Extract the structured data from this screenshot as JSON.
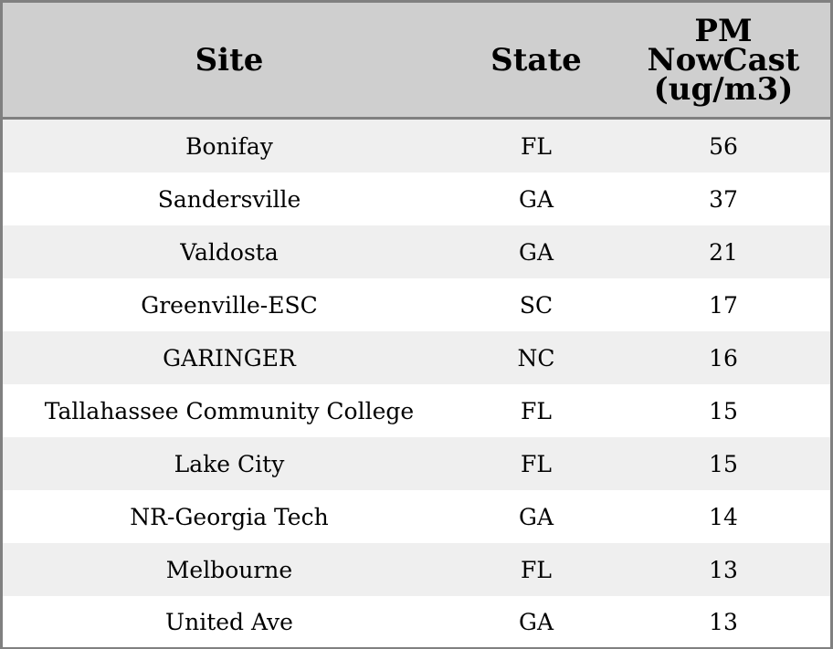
{
  "chart_data": {
    "type": "table",
    "columns": [
      "Site",
      "State",
      "PM NowCast (ug/m3)"
    ],
    "header_lines": {
      "site": "Site",
      "state": "State",
      "pm": [
        "PM",
        "NowCast",
        "(ug/m3)"
      ]
    },
    "rows": [
      [
        "Bonifay",
        "FL",
        "56"
      ],
      [
        "Sandersville",
        "GA",
        "37"
      ],
      [
        "Valdosta",
        "GA",
        "21"
      ],
      [
        "Greenville-ESC",
        "SC",
        "17"
      ],
      [
        "GARINGER",
        "NC",
        "16"
      ],
      [
        "Tallahassee Community College",
        "FL",
        "15"
      ],
      [
        "Lake City",
        "FL",
        "15"
      ],
      [
        "NR-Georgia Tech",
        "GA",
        "14"
      ],
      [
        "Melbourne",
        "FL",
        "13"
      ],
      [
        "United Ave",
        "GA",
        "13"
      ]
    ],
    "colors": {
      "header_bg": "#cfcfcf",
      "row_alt_bg": "#efefef",
      "row_bg": "#ffffff",
      "border": "#808080"
    }
  }
}
